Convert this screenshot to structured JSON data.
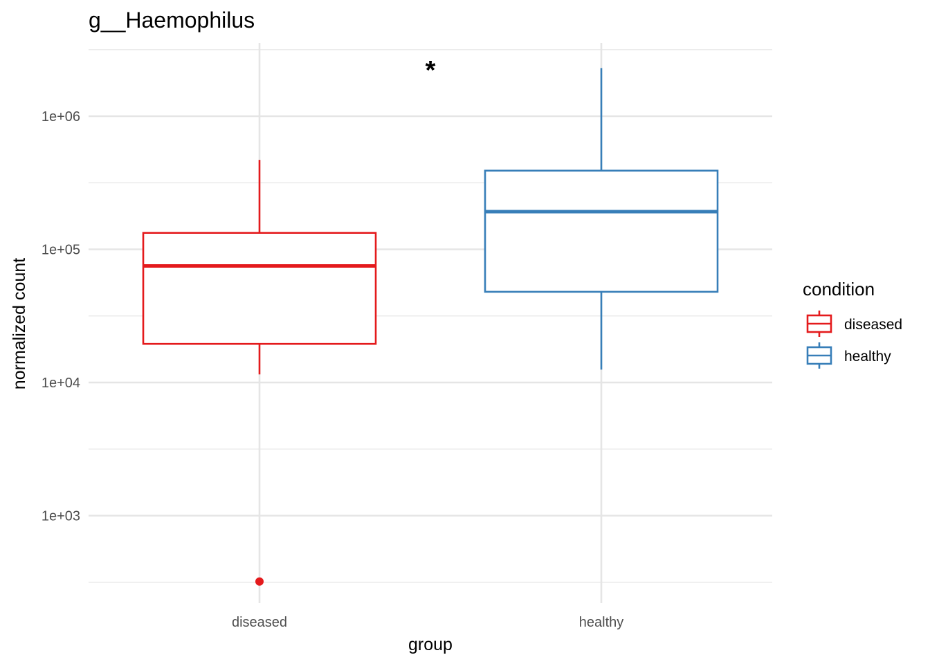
{
  "chart_data": {
    "type": "box",
    "title": "g__Haemophilus",
    "xlabel": "group",
    "ylabel": "normalized count",
    "yscale": "log10",
    "ylim": [
      200,
      3500000
    ],
    "categories": [
      "diseased",
      "healthy"
    ],
    "y_ticks": [
      {
        "value": 1000,
        "label": "1e+03"
      },
      {
        "value": 10000,
        "label": "1e+04"
      },
      {
        "value": 100000,
        "label": "1e+05"
      },
      {
        "value": 1000000,
        "label": "1e+06"
      }
    ],
    "y_minor_ticks": [
      316,
      3162,
      31623,
      316228,
      3162278
    ],
    "grid": true,
    "series": [
      {
        "name": "diseased",
        "category": "diseased",
        "color": "#e41a1c",
        "whisker_low": 11500,
        "q1": 19500,
        "median": 75000,
        "q3": 133000,
        "whisker_high": 470000,
        "outliers": [
          320
        ]
      },
      {
        "name": "healthy",
        "category": "healthy",
        "color": "#377eb8",
        "whisker_low": 12500,
        "q1": 48000,
        "median": 192000,
        "q3": 390000,
        "whisker_high": 2300000,
        "outliers": []
      }
    ],
    "annotations": [
      {
        "text": "*",
        "x_between": [
          "diseased",
          "healthy"
        ],
        "y": 2600000
      }
    ],
    "legend": {
      "title": "condition",
      "position": "right",
      "entries": [
        "diseased",
        "healthy"
      ]
    }
  }
}
